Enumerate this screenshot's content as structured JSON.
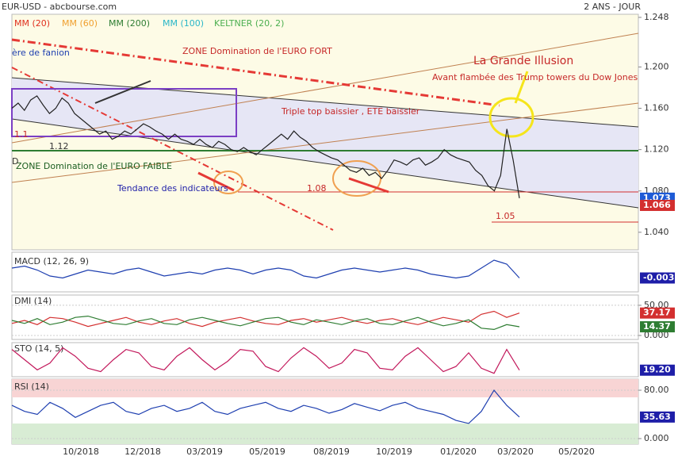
{
  "chart_data": [
    {
      "type": "line",
      "title": "EUR-USD - abcbourse.com",
      "subtitle": "2 ANS - JOUR",
      "legend": [
        {
          "name": "MM (20)",
          "color": "#e0301e"
        },
        {
          "name": "MM (60)",
          "color": "#f0a030"
        },
        {
          "name": "MM (200)",
          "color": "#2e7d32"
        },
        {
          "name": "MM (100)",
          "color": "#29b6c8"
        },
        {
          "name": "KELTNER (20, 2)",
          "color": "#4caf50"
        }
      ],
      "series": [
        {
          "name": "EUR-USD",
          "color": "#222222",
          "values": [
            1.16,
            1.165,
            1.158,
            1.168,
            1.172,
            1.163,
            1.155,
            1.16,
            1.17,
            1.165,
            1.155,
            1.15,
            1.145,
            1.14,
            1.135,
            1.138,
            1.13,
            1.133,
            1.138,
            1.135,
            1.14,
            1.145,
            1.142,
            1.138,
            1.135,
            1.13,
            1.135,
            1.13,
            1.128,
            1.125,
            1.13,
            1.125,
            1.122,
            1.128,
            1.125,
            1.12,
            1.118,
            1.122,
            1.118,
            1.115,
            1.12,
            1.125,
            1.13,
            1.135,
            1.13,
            1.138,
            1.132,
            1.128,
            1.122,
            1.118,
            1.115,
            1.112,
            1.11,
            1.105,
            1.1,
            1.098,
            1.102,
            1.095,
            1.098,
            1.092,
            1.1,
            1.11,
            1.108,
            1.105,
            1.11,
            1.112,
            1.105,
            1.108,
            1.112,
            1.12,
            1.115,
            1.112,
            1.11,
            1.108,
            1.1,
            1.095,
            1.085,
            1.08,
            1.095,
            1.14,
            1.11,
            1.073
          ]
        }
      ],
      "ylim": [
        1.023,
        1.251
      ],
      "yticks": [
        {
          "value": 1.04,
          "label": "1.040"
        },
        {
          "value": 1.08,
          "label": "1.080"
        },
        {
          "value": 1.12,
          "label": "1.120"
        },
        {
          "value": 1.16,
          "label": "1.160"
        },
        {
          "value": 1.2,
          "label": "1.200"
        },
        {
          "value": 1.248,
          "label": "1.248"
        }
      ],
      "current": [
        {
          "value": 1.073,
          "label": "1.073",
          "color": "#1e5bd6"
        },
        {
          "value": 1.066,
          "label": "1.066",
          "color": "#d32f2f"
        }
      ],
      "xticklabels": [
        "10/2018",
        "12/2018",
        "03/2019",
        "05/2019",
        "08/2019",
        "10/2019",
        "01/2020",
        "03/2020",
        "05/2020"
      ],
      "annotations": [
        "ère de fanion",
        "ZONE Domination de l'EURO FORT",
        "La Grande Illusion",
        "Avant flambée des Trump towers du Dow Jones",
        "Triple top baissier , ETE baissier",
        "1.12",
        "ZONE Domination de l'EURO FAIBLE",
        "Tendance des indicateurs",
        "1.08",
        "1.05",
        "D",
        "1.1"
      ]
    },
    {
      "type": "line",
      "title": "MACD (12, 26, 9)",
      "ylim": [
        -0.01,
        0.01
      ],
      "series": [
        {
          "name": "MACD",
          "color": "#1e3fb0",
          "values": [
            0.002,
            0.003,
            0.001,
            -0.002,
            -0.003,
            -0.001,
            0.001,
            0.0,
            -0.001,
            0.001,
            0.002,
            0.0,
            -0.002,
            -0.001,
            0.0,
            -0.001,
            0.001,
            0.002,
            0.001,
            -0.001,
            0.001,
            0.002,
            0.001,
            -0.002,
            -0.003,
            -0.001,
            0.001,
            0.002,
            0.001,
            0.0,
            0.001,
            0.002,
            0.001,
            -0.001,
            -0.002,
            -0.003,
            -0.002,
            0.002,
            0.006,
            0.004,
            -0.003
          ]
        }
      ],
      "current": [
        {
          "value": -0.003,
          "label": "-0.003",
          "color": "#1e1ea8"
        }
      ]
    },
    {
      "type": "line",
      "title": "DMI (14)",
      "ylim": [
        -6.6,
        67
      ],
      "yticks": [
        {
          "value": 50,
          "label": "50.00"
        },
        {
          "value": 0,
          "label": "0.000"
        }
      ],
      "series": [
        {
          "name": "+DI",
          "color": "#d32f2f",
          "values": [
            20,
            25,
            18,
            30,
            28,
            22,
            15,
            20,
            25,
            30,
            22,
            18,
            24,
            28,
            20,
            15,
            22,
            26,
            30,
            24,
            20,
            18,
            25,
            28,
            22,
            26,
            30,
            24,
            20,
            25,
            28,
            22,
            18,
            24,
            30,
            26,
            22,
            35,
            40,
            30,
            37.17
          ]
        },
        {
          "name": "-DI",
          "color": "#2e7d32",
          "values": [
            25,
            20,
            28,
            18,
            22,
            30,
            32,
            26,
            20,
            18,
            24,
            28,
            20,
            18,
            26,
            30,
            25,
            20,
            16,
            22,
            28,
            30,
            22,
            18,
            26,
            22,
            18,
            24,
            28,
            20,
            18,
            24,
            30,
            22,
            16,
            20,
            26,
            12,
            10,
            18,
            14.37
          ]
        }
      ],
      "current": [
        {
          "value": 37.17,
          "label": "37.17",
          "color": "#d32f2f"
        },
        {
          "value": 14.37,
          "label": "14.37",
          "color": "#2e7d32"
        }
      ]
    },
    {
      "type": "line",
      "title": "STO (14, 5)",
      "ylim": [
        0,
        100
      ],
      "series": [
        {
          "name": "STO",
          "color": "#c2185b",
          "values": [
            80,
            50,
            20,
            40,
            85,
            60,
            25,
            15,
            50,
            80,
            70,
            30,
            20,
            60,
            85,
            50,
            20,
            45,
            80,
            75,
            30,
            15,
            55,
            85,
            60,
            25,
            40,
            80,
            70,
            25,
            20,
            60,
            85,
            50,
            15,
            30,
            70,
            25,
            10,
            80,
            19.2
          ]
        }
      ],
      "current": [
        {
          "value": 19.2,
          "label": "19.20",
          "color": "#1e1ea8"
        }
      ]
    },
    {
      "type": "line",
      "title": "RSI (14)",
      "ylim": [
        -9.2,
        98.4
      ],
      "yticks": [
        {
          "value": 80,
          "label": "80.00"
        },
        {
          "value": 0,
          "label": "0.000"
        }
      ],
      "series": [
        {
          "name": "RSI",
          "color": "#1e3fb0",
          "values": [
            55,
            45,
            40,
            60,
            50,
            35,
            45,
            55,
            60,
            45,
            40,
            50,
            55,
            45,
            50,
            60,
            45,
            40,
            50,
            55,
            60,
            50,
            45,
            55,
            50,
            42,
            48,
            58,
            52,
            46,
            55,
            60,
            50,
            45,
            40,
            30,
            25,
            45,
            80,
            55,
            35.63
          ]
        }
      ],
      "current": [
        {
          "value": 35.63,
          "label": "35.63",
          "color": "#1e1ea8"
        }
      ]
    }
  ]
}
